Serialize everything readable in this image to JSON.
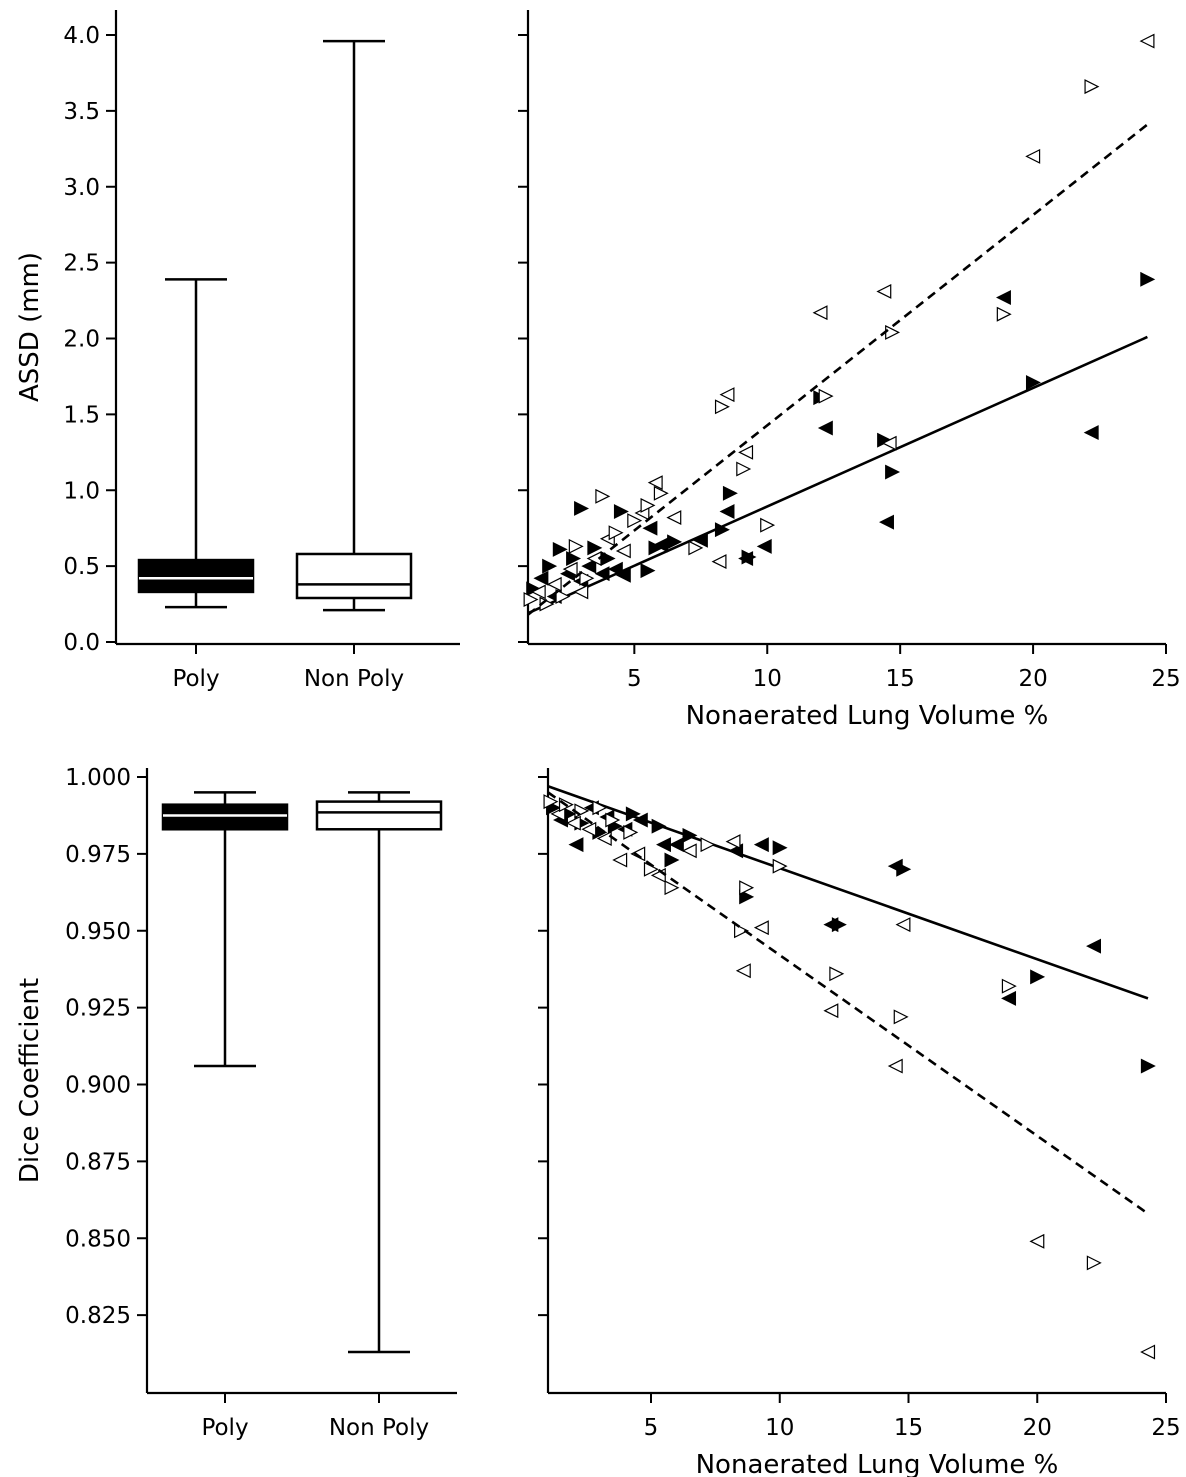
{
  "chart_data": [
    {
      "type": "box",
      "panel": "top-left",
      "ylabel": "ASSD (mm)",
      "ylim": [
        0.0,
        4.0
      ],
      "yticks": [
        "0.0",
        "0.5",
        "1.0",
        "1.5",
        "2.0",
        "2.5",
        "3.0",
        "3.5",
        "4.0"
      ],
      "categories": [
        "Poly",
        "Non Poly"
      ],
      "boxes": [
        {
          "category": "Poly",
          "fill": "#000000",
          "median_color": "#ffffff",
          "whisker_low": 0.23,
          "q1": 0.33,
          "median": 0.42,
          "q3": 0.54,
          "whisker_high": 2.39
        },
        {
          "category": "Non Poly",
          "fill": "#ffffff",
          "median_color": "#000000",
          "whisker_low": 0.21,
          "q1": 0.29,
          "median": 0.38,
          "q3": 0.58,
          "whisker_high": 3.96
        }
      ]
    },
    {
      "type": "scatter",
      "panel": "top-right",
      "xlabel": "Nonaerated Lung Volume %",
      "xlim": [
        1,
        25
      ],
      "ylim": [
        0.0,
        4.0
      ],
      "xticks": [
        "5",
        "10",
        "15",
        "20",
        "25"
      ],
      "series": [
        {
          "marker": "filled-triangles",
          "color": "#000000",
          "fit_line": "solid",
          "fit": {
            "x0": 1,
            "y0": 0.19,
            "x1": 24.3,
            "y1": 2.01
          },
          "points": [
            [
              1.2,
              0.35
            ],
            [
              1.5,
              0.42
            ],
            [
              1.8,
              0.5
            ],
            [
              2.0,
              0.3
            ],
            [
              2.2,
              0.61
            ],
            [
              2.5,
              0.45
            ],
            [
              2.7,
              0.55
            ],
            [
              3.0,
              0.4
            ],
            [
              3.0,
              0.88
            ],
            [
              3.3,
              0.5
            ],
            [
              3.5,
              0.62
            ],
            [
              3.8,
              0.45
            ],
            [
              4.0,
              0.55
            ],
            [
              4.3,
              0.48
            ],
            [
              4.5,
              0.86
            ],
            [
              4.6,
              0.44
            ],
            [
              5.5,
              0.47
            ],
            [
              5.6,
              0.75
            ],
            [
              5.8,
              0.62
            ],
            [
              6.0,
              0.64
            ],
            [
              6.5,
              0.66
            ],
            [
              7.5,
              0.67
            ],
            [
              8.3,
              0.74
            ],
            [
              8.5,
              0.86
            ],
            [
              8.6,
              0.98
            ],
            [
              9.2,
              0.55
            ],
            [
              9.3,
              0.56
            ],
            [
              9.9,
              0.63
            ],
            [
              12.0,
              1.61
            ],
            [
              12.2,
              1.41
            ],
            [
              14.4,
              1.33
            ],
            [
              14.5,
              0.79
            ],
            [
              14.7,
              1.12
            ],
            [
              18.9,
              2.27
            ],
            [
              20.0,
              1.71
            ],
            [
              22.2,
              1.38
            ],
            [
              24.3,
              2.39
            ]
          ]
        },
        {
          "marker": "open-triangles",
          "color": "#000000",
          "fit_line": "dashed",
          "fit": {
            "x0": 1,
            "y0": 0.18,
            "x1": 24.3,
            "y1": 3.41
          },
          "points": [
            [
              1.1,
              0.28
            ],
            [
              1.4,
              0.33
            ],
            [
              1.7,
              0.25
            ],
            [
              2.0,
              0.38
            ],
            [
              2.3,
              0.3
            ],
            [
              2.6,
              0.48
            ],
            [
              2.8,
              0.63
            ],
            [
              3.0,
              0.33
            ],
            [
              3.2,
              0.42
            ],
            [
              3.5,
              0.55
            ],
            [
              3.8,
              0.96
            ],
            [
              4.0,
              0.68
            ],
            [
              4.3,
              0.72
            ],
            [
              4.6,
              0.6
            ],
            [
              5.0,
              0.8
            ],
            [
              5.3,
              0.85
            ],
            [
              5.5,
              0.9
            ],
            [
              5.8,
              1.05
            ],
            [
              6.0,
              0.98
            ],
            [
              6.5,
              0.82
            ],
            [
              7.3,
              0.62
            ],
            [
              8.2,
              0.53
            ],
            [
              8.3,
              1.55
            ],
            [
              8.5,
              1.63
            ],
            [
              9.1,
              1.14
            ],
            [
              9.2,
              1.25
            ],
            [
              10.0,
              0.77
            ],
            [
              12.0,
              2.17
            ],
            [
              12.2,
              1.62
            ],
            [
              14.4,
              2.31
            ],
            [
              14.7,
              2.04
            ],
            [
              14.6,
              1.31
            ],
            [
              18.9,
              2.16
            ],
            [
              20.0,
              3.2
            ],
            [
              22.2,
              3.66
            ],
            [
              24.3,
              3.96
            ]
          ]
        }
      ]
    },
    {
      "type": "box",
      "panel": "bottom-left",
      "ylabel": "Dice Coefficient",
      "ylim": [
        0.805,
        1.0
      ],
      "yticks": [
        "0.825",
        "0.850",
        "0.875",
        "0.900",
        "0.925",
        "0.950",
        "0.975",
        "1.000"
      ],
      "categories": [
        "Poly",
        "Non Poly"
      ],
      "boxes": [
        {
          "category": "Poly",
          "fill": "#000000",
          "median_color": "#ffffff",
          "whisker_low": 0.906,
          "q1": 0.983,
          "median": 0.9875,
          "q3": 0.991,
          "whisker_high": 0.995
        },
        {
          "category": "Non Poly",
          "fill": "#ffffff",
          "median_color": "#000000",
          "whisker_low": 0.813,
          "q1": 0.983,
          "median": 0.9885,
          "q3": 0.992,
          "whisker_high": 0.995
        }
      ]
    },
    {
      "type": "scatter",
      "panel": "bottom-right",
      "xlabel": "Nonaerated Lung Volume %",
      "xlim": [
        1,
        25
      ],
      "ylim": [
        0.805,
        1.0
      ],
      "xticks": [
        "5",
        "10",
        "15",
        "20",
        "25"
      ],
      "series": [
        {
          "marker": "filled-triangles",
          "color": "#000000",
          "fit_line": "solid",
          "fit": {
            "x0": 1,
            "y0": 0.997,
            "x1": 24.3,
            "y1": 0.928
          },
          "points": [
            [
              1.2,
              0.99
            ],
            [
              1.5,
              0.986
            ],
            [
              1.8,
              0.988
            ],
            [
              2.1,
              0.978
            ],
            [
              2.3,
              0.985
            ],
            [
              2.7,
              0.99
            ],
            [
              3.0,
              0.982
            ],
            [
              3.3,
              0.987
            ],
            [
              3.6,
              0.984
            ],
            [
              4.0,
              0.983
            ],
            [
              4.3,
              0.988
            ],
            [
              4.6,
              0.986
            ],
            [
              5.3,
              0.984
            ],
            [
              5.5,
              0.978
            ],
            [
              5.8,
              0.973
            ],
            [
              6.0,
              0.978
            ],
            [
              6.5,
              0.981
            ],
            [
              8.3,
              0.976
            ],
            [
              8.7,
              0.961
            ],
            [
              9.3,
              0.978
            ],
            [
              10.0,
              0.977
            ],
            [
              12.0,
              0.952
            ],
            [
              12.3,
              0.952
            ],
            [
              14.5,
              0.971
            ],
            [
              14.8,
              0.97
            ],
            [
              18.9,
              0.928
            ],
            [
              20.0,
              0.935
            ],
            [
              22.2,
              0.945
            ],
            [
              24.3,
              0.906
            ]
          ]
        },
        {
          "marker": "open-triangles",
          "color": "#000000",
          "fit_line": "dashed",
          "fit": {
            "x0": 1,
            "y0": 0.995,
            "x1": 24.3,
            "y1": 0.858
          },
          "points": [
            [
              1.1,
              0.992
            ],
            [
              1.4,
              0.988
            ],
            [
              1.7,
              0.991
            ],
            [
              2.0,
              0.985
            ],
            [
              2.3,
              0.989
            ],
            [
              2.6,
              0.983
            ],
            [
              3.0,
              0.99
            ],
            [
              3.2,
              0.98
            ],
            [
              3.5,
              0.986
            ],
            [
              3.8,
              0.973
            ],
            [
              4.2,
              0.982
            ],
            [
              4.5,
              0.975
            ],
            [
              5.0,
              0.97
            ],
            [
              5.3,
              0.968
            ],
            [
              5.8,
              0.964
            ],
            [
              6.5,
              0.976
            ],
            [
              7.2,
              0.978
            ],
            [
              8.2,
              0.979
            ],
            [
              8.5,
              0.95
            ],
            [
              8.6,
              0.937
            ],
            [
              8.7,
              0.964
            ],
            [
              9.3,
              0.951
            ],
            [
              10.0,
              0.971
            ],
            [
              12.0,
              0.924
            ],
            [
              12.2,
              0.936
            ],
            [
              14.5,
              0.906
            ],
            [
              14.7,
              0.922
            ],
            [
              14.8,
              0.952
            ],
            [
              18.9,
              0.932
            ],
            [
              20.0,
              0.849
            ],
            [
              22.2,
              0.842
            ],
            [
              24.3,
              0.813
            ]
          ]
        }
      ]
    }
  ]
}
